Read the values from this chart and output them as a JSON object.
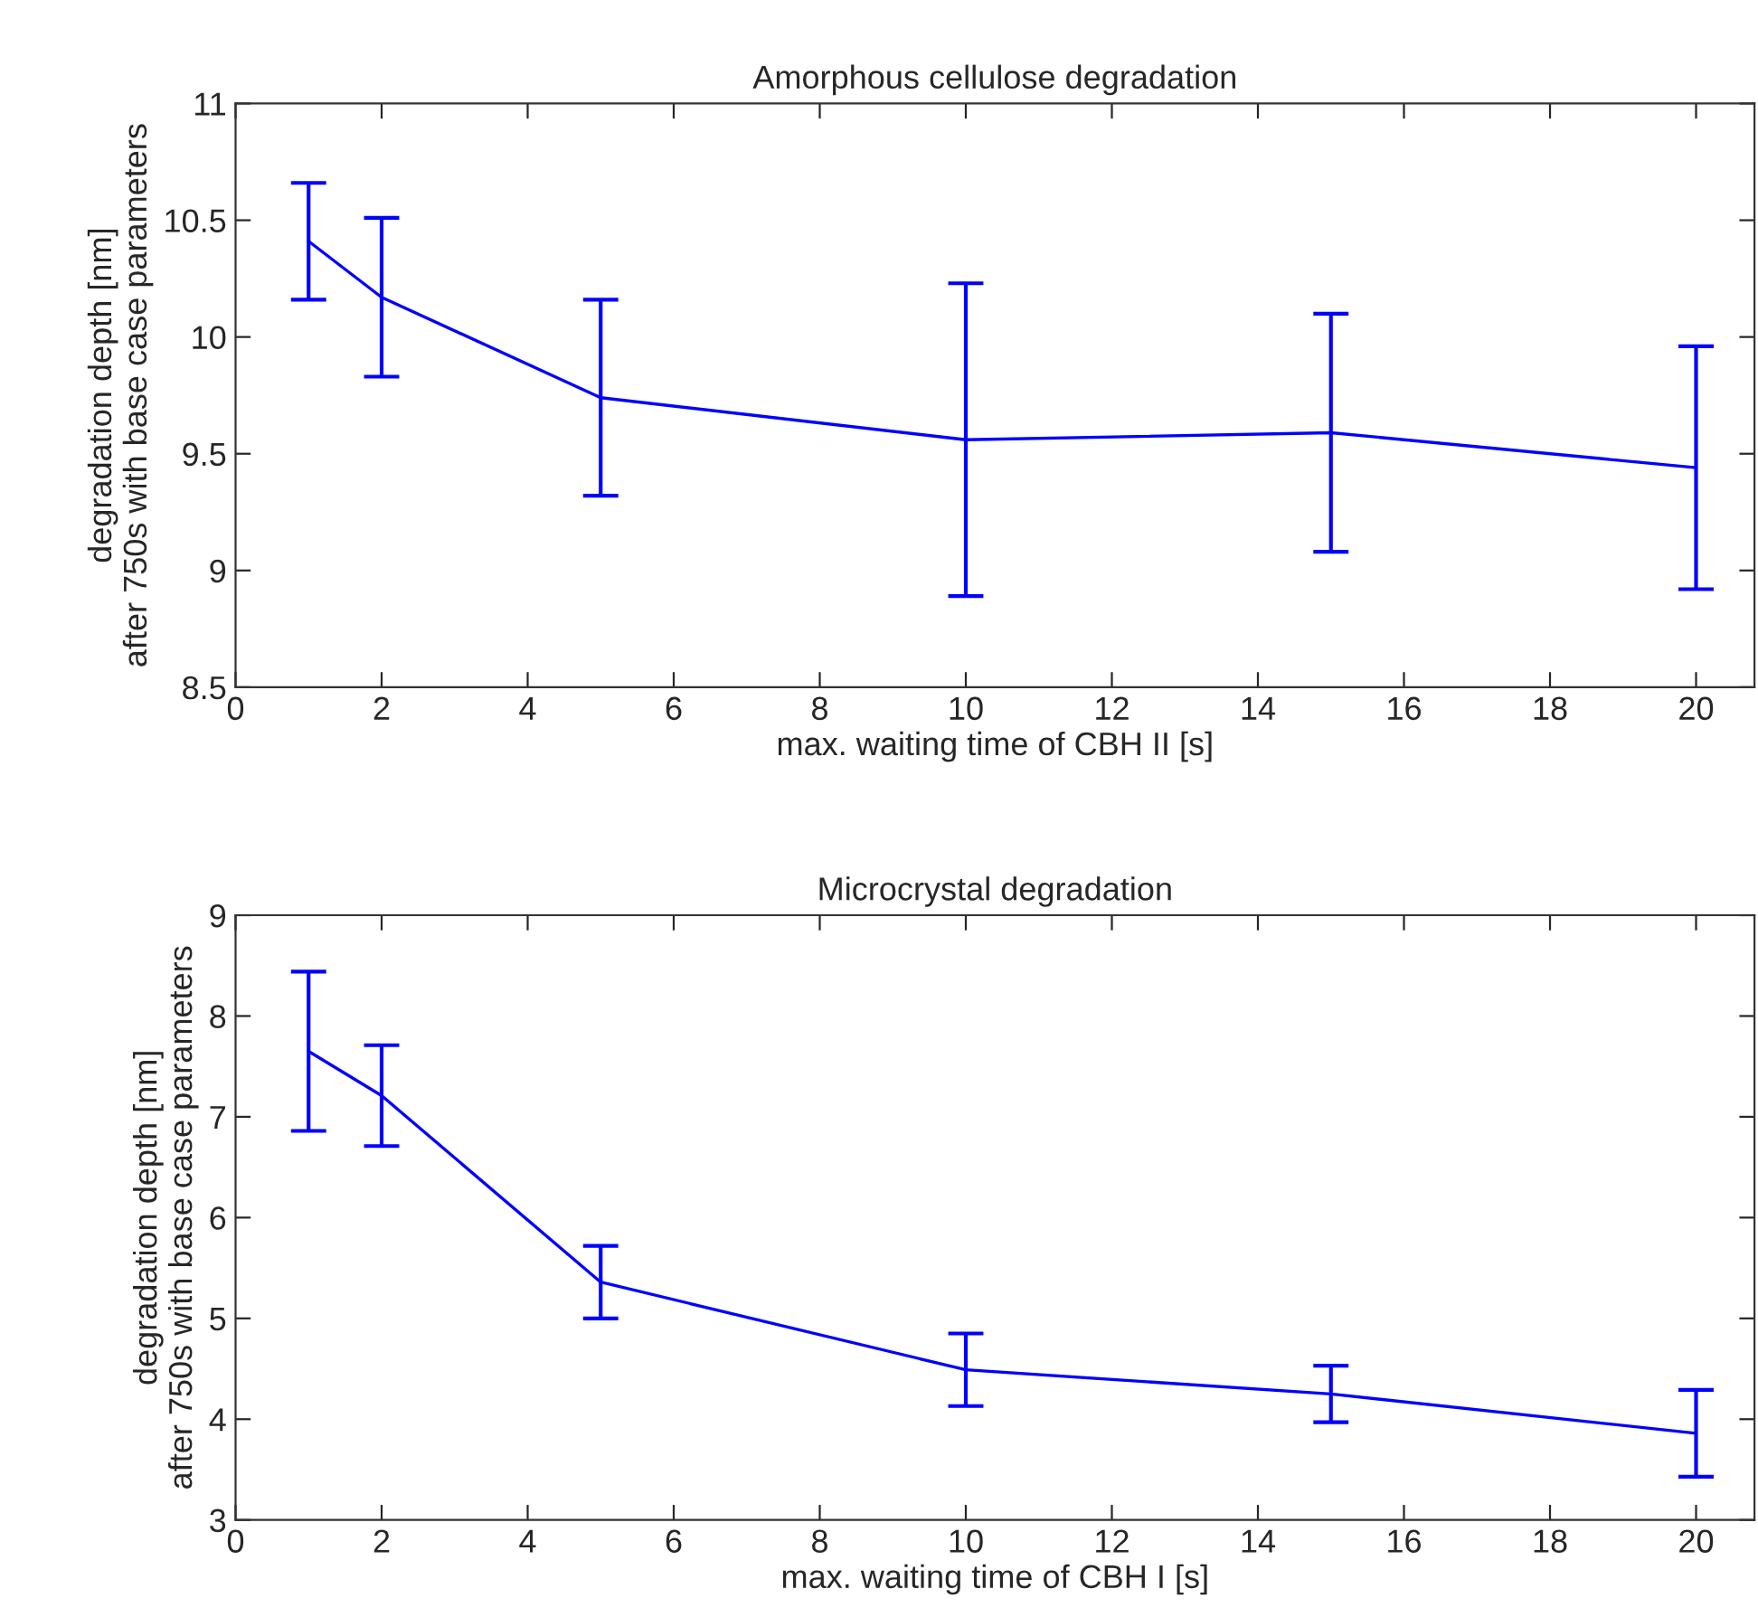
{
  "chart_data": [
    {
      "type": "line",
      "title": "Amorphous cellulose degradation",
      "xlabel": "max. waiting time of CBH II [s]",
      "ylabel": "degradation depth [nm]\nafter 750s with base case parameters",
      "x": [
        1,
        2,
        5,
        10,
        15,
        20
      ],
      "series": [
        {
          "color": "#0000ff",
          "values": [
            10.41,
            10.17,
            9.74,
            9.56,
            9.59,
            9.44
          ],
          "errors": [
            0.25,
            0.34,
            0.42,
            0.67,
            0.51,
            0.52
          ]
        }
      ],
      "xlim": [
        0,
        20.8
      ],
      "xticks": [
        0,
        2,
        4,
        6,
        8,
        10,
        12,
        14,
        16,
        18,
        20
      ],
      "ylim": [
        8.5,
        11
      ],
      "yticks": [
        8.5,
        9,
        9.5,
        10,
        10.5,
        11
      ],
      "grid": false,
      "legend": false
    },
    {
      "type": "line",
      "title": "Microcrystal degradation",
      "xlabel": "max. waiting time of CBH I [s]",
      "ylabel": "degradation depth [nm]\nafter 750s with base case parameters",
      "x": [
        1,
        2,
        5,
        10,
        15,
        20
      ],
      "series": [
        {
          "color": "#0000ff",
          "values": [
            7.65,
            7.21,
            5.36,
            4.49,
            4.25,
            3.86
          ],
          "errors": [
            0.79,
            0.5,
            0.36,
            0.36,
            0.28,
            0.43
          ]
        }
      ],
      "xlim": [
        0,
        20.8
      ],
      "xticks": [
        0,
        2,
        4,
        6,
        8,
        10,
        12,
        14,
        16,
        18,
        20
      ],
      "ylim": [
        3,
        9
      ],
      "yticks": [
        3,
        4,
        5,
        6,
        7,
        8,
        9
      ],
      "grid": false,
      "legend": false
    }
  ]
}
